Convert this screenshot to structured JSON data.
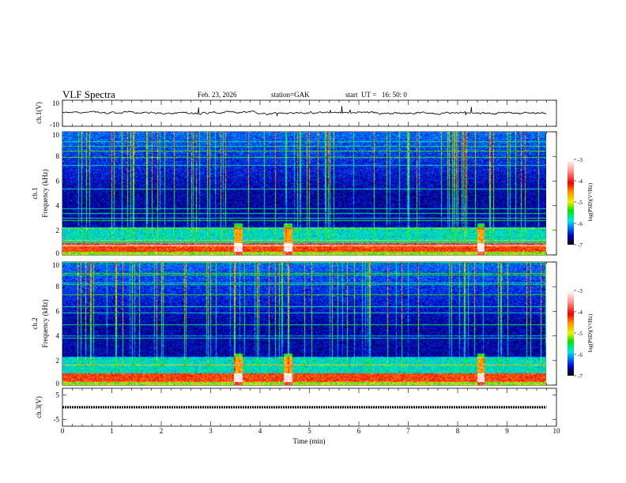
{
  "header": {
    "title": "VLF Spectra",
    "date": "Feb. 23, 2026",
    "station": "station=GAK",
    "start_ut": "start  UT =   16: 50: 0"
  },
  "chart_data": [
    {
      "type": "line",
      "name": "ch1-waveform",
      "ylabel": "ch.1(V)",
      "ylim": [
        -10,
        10
      ],
      "yticks": [
        "10",
        "-10"
      ],
      "xlim": [
        0,
        10
      ]
    },
    {
      "type": "heatmap",
      "name": "ch1-spectrogram",
      "ylabel": "ch.1\nFrequency (kHz)",
      "ylabel_line1": "ch.1",
      "ylabel_line2": "Frequency  (kHz)",
      "ylim": [
        0,
        10
      ],
      "yticks": [
        "0",
        "2",
        "4",
        "6",
        "8",
        "10"
      ],
      "xlim": [
        0,
        10
      ],
      "data_end_min": 9.8,
      "colorbar": {
        "label": "log(PSD)(V²/Hz)",
        "range": [
          -7,
          -3
        ],
        "ticks": [
          "-3",
          "-4",
          "-5",
          "-6",
          "-7"
        ]
      }
    },
    {
      "type": "heatmap",
      "name": "ch2-spectrogram",
      "ylabel_line1": "ch.2",
      "ylabel_line2": "Frequency  (kHz)",
      "ylim": [
        0,
        10
      ],
      "yticks": [
        "0",
        "2",
        "4",
        "6",
        "8",
        "10"
      ],
      "xlim": [
        0,
        10
      ],
      "data_end_min": 9.8,
      "colorbar": {
        "label": "log(PSD)(V²/Hz)",
        "range": [
          -7,
          -3
        ],
        "ticks": [
          "-3",
          "-4",
          "-5",
          "-6",
          "-7"
        ]
      }
    },
    {
      "type": "line",
      "name": "ch3-waveform",
      "ylabel": "ch.3(V)",
      "ylim": [
        -5,
        5
      ],
      "yticks": [
        "5",
        "-5"
      ],
      "xlim": [
        0,
        10
      ],
      "level": 0
    }
  ],
  "xaxis": {
    "label": "Time  (min)",
    "ticks": [
      "0",
      "1",
      "2",
      "3",
      "4",
      "5",
      "6",
      "7",
      "8",
      "9",
      "10"
    ]
  },
  "colors": {
    "axis": "#000000",
    "waveform": "#000000"
  }
}
